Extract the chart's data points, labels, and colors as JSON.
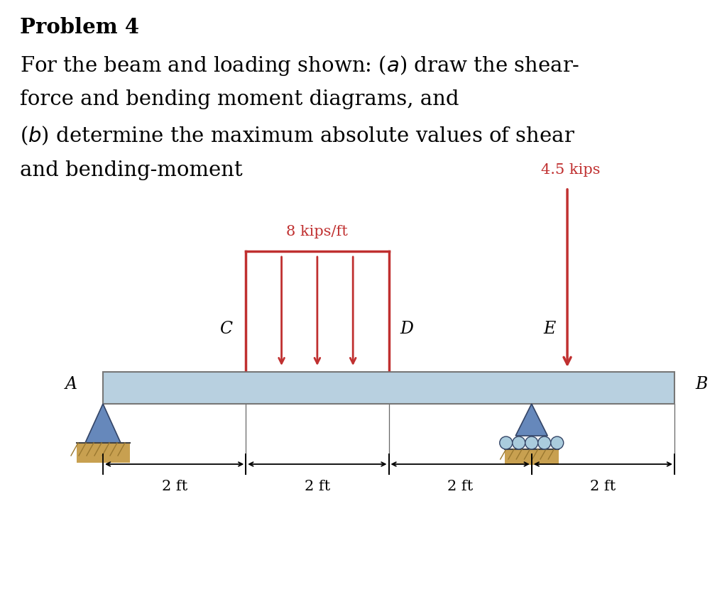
{
  "title": "Problem 4",
  "background_color": "#ffffff",
  "beam_color": "#b8d0e0",
  "beam_outline_color": "#777777",
  "dist_load_label": "8 kips/ft",
  "point_load_label": "4.5 kips",
  "load_color": "#c03030",
  "dim_labels": [
    "2 ft",
    "2 ft",
    "2 ft",
    "2 ft"
  ],
  "support_A_color": "#6688bb",
  "support_E_color": "#6688bb",
  "ground_color": "#c8a050",
  "ground_hatch_color": "#c8a050",
  "roller_circle_color": "#aaccdd",
  "text_font_size": 21,
  "label_font_size": 17,
  "dim_font_size": 15
}
